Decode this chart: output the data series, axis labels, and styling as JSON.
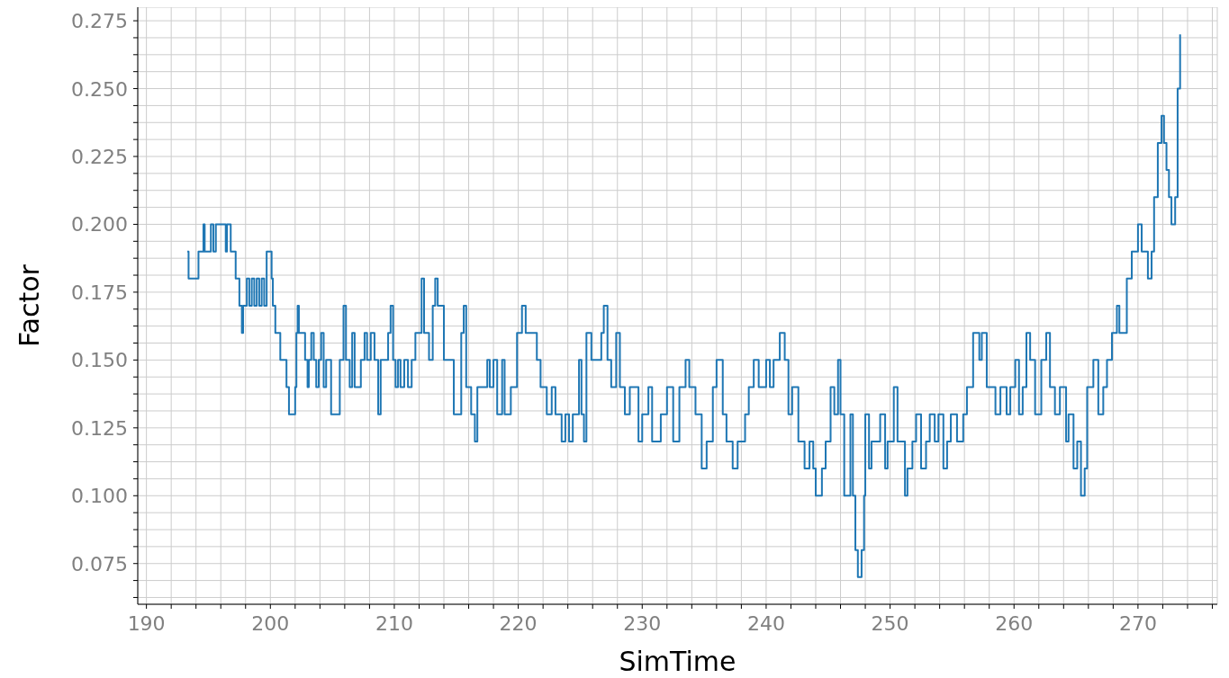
{
  "chart_data": {
    "type": "step",
    "xlabel": "SimTime",
    "ylabel": "Factor",
    "xlim": [
      189.3,
      276.4
    ],
    "ylim": [
      0.06,
      0.28
    ],
    "xticks": [
      190,
      {
        "value": 192,
        "label": null
      },
      {
        "value": 194,
        "label": null
      },
      {
        "value": 196,
        "label": null
      },
      {
        "value": 198,
        "label": null
      },
      200,
      {
        "value": 202,
        "label": null
      },
      {
        "value": 204,
        "label": null
      },
      {
        "value": 206,
        "label": null
      },
      {
        "value": 208,
        "label": null
      },
      210,
      {
        "value": 212,
        "label": null
      },
      {
        "value": 214,
        "label": null
      },
      {
        "value": 216,
        "label": null
      },
      {
        "value": 218,
        "label": null
      },
      220,
      {
        "value": 222,
        "label": null
      },
      {
        "value": 224,
        "label": null
      },
      {
        "value": 226,
        "label": null
      },
      {
        "value": 228,
        "label": null
      },
      230,
      {
        "value": 232,
        "label": null
      },
      {
        "value": 234,
        "label": null
      },
      {
        "value": 236,
        "label": null
      },
      {
        "value": 238,
        "label": null
      },
      240,
      {
        "value": 242,
        "label": null
      },
      {
        "value": 244,
        "label": null
      },
      {
        "value": 246,
        "label": null
      },
      {
        "value": 248,
        "label": null
      },
      250,
      {
        "value": 252,
        "label": null
      },
      {
        "value": 254,
        "label": null
      },
      {
        "value": 256,
        "label": null
      },
      {
        "value": 258,
        "label": null
      },
      260,
      {
        "value": 262,
        "label": null
      },
      {
        "value": 264,
        "label": null
      },
      {
        "value": 266,
        "label": null
      },
      {
        "value": 268,
        "label": null
      },
      270,
      {
        "value": 272,
        "label": null
      },
      {
        "value": 274,
        "label": null
      },
      {
        "value": 276,
        "label": null
      }
    ],
    "yticks": [
      {
        "value": 0.0625,
        "label": null
      },
      {
        "value": 0.06875,
        "label": null
      },
      {
        "value": 0.075,
        "label": "0.075"
      },
      {
        "value": 0.08125,
        "label": null
      },
      {
        "value": 0.0875,
        "label": null
      },
      {
        "value": 0.09375,
        "label": null
      },
      {
        "value": 0.1,
        "label": "0.100"
      },
      {
        "value": 0.10625,
        "label": null
      },
      {
        "value": 0.1125,
        "label": null
      },
      {
        "value": 0.11875,
        "label": null
      },
      {
        "value": 0.125,
        "label": "0.125"
      },
      {
        "value": 0.13125,
        "label": null
      },
      {
        "value": 0.1375,
        "label": null
      },
      {
        "value": 0.14375,
        "label": null
      },
      {
        "value": 0.15,
        "label": "0.150"
      },
      {
        "value": 0.15625,
        "label": null
      },
      {
        "value": 0.1625,
        "label": null
      },
      {
        "value": 0.16875,
        "label": null
      },
      {
        "value": 0.175,
        "label": "0.175"
      },
      {
        "value": 0.18125,
        "label": null
      },
      {
        "value": 0.1875,
        "label": null
      },
      {
        "value": 0.19375,
        "label": null
      },
      {
        "value": 0.2,
        "label": "0.200"
      },
      {
        "value": 0.20625,
        "label": null
      },
      {
        "value": 0.2125,
        "label": null
      },
      {
        "value": 0.21875,
        "label": null
      },
      {
        "value": 0.225,
        "label": "0.225"
      },
      {
        "value": 0.23125,
        "label": null
      },
      {
        "value": 0.2375,
        "label": null
      },
      {
        "value": 0.24375,
        "label": null
      },
      {
        "value": 0.25,
        "label": "0.250"
      },
      {
        "value": 0.25625,
        "label": null
      },
      {
        "value": 0.2625,
        "label": null
      },
      {
        "value": 0.26875,
        "label": null
      },
      {
        "value": 0.275,
        "label": "0.275"
      }
    ],
    "grid": true,
    "series": [
      {
        "color": "#1f77b4",
        "x": [
          193.3,
          193.4,
          194.2,
          194.6,
          194.7,
          195.2,
          195.4,
          195.6,
          196.4,
          196.5,
          196.8,
          197.2,
          197.5,
          197.7,
          197.8,
          198.1,
          198.3,
          198.5,
          198.7,
          198.9,
          199.1,
          199.3,
          199.5,
          199.7,
          200.1,
          200.2,
          200.4,
          200.8,
          201.3,
          201.5,
          202.0,
          202.1,
          202.2,
          202.3,
          202.8,
          203.0,
          203.1,
          203.3,
          203.5,
          203.7,
          203.9,
          204.1,
          204.3,
          204.5,
          204.9,
          205.6,
          205.9,
          206.1,
          206.4,
          206.6,
          206.8,
          207.3,
          207.6,
          207.8,
          208.1,
          208.4,
          208.7,
          208.9,
          209.5,
          209.7,
          209.9,
          210.1,
          210.3,
          210.5,
          210.8,
          211.1,
          211.4,
          211.7,
          212.2,
          212.4,
          212.8,
          213.1,
          213.3,
          213.5,
          214.0,
          214.8,
          215.4,
          215.6,
          215.8,
          216.2,
          216.5,
          216.7,
          217.5,
          217.7,
          218.0,
          218.3,
          218.7,
          218.9,
          219.4,
          219.9,
          220.3,
          220.6,
          221.5,
          221.8,
          222.3,
          222.7,
          223.0,
          223.5,
          223.8,
          224.1,
          224.4,
          224.9,
          225.1,
          225.3,
          225.5,
          225.9,
          226.7,
          226.9,
          227.2,
          227.5,
          227.9,
          228.2,
          228.6,
          229.0,
          229.7,
          230.0,
          230.5,
          230.8,
          231.5,
          232.0,
          232.5,
          233.0,
          233.5,
          233.8,
          234.3,
          234.8,
          235.2,
          235.7,
          236.0,
          236.5,
          236.8,
          237.3,
          237.7,
          238.3,
          238.6,
          239.0,
          239.4,
          240.0,
          240.3,
          240.6,
          241.1,
          241.5,
          241.8,
          242.1,
          242.6,
          243.1,
          243.5,
          243.8,
          244.0,
          244.5,
          244.8,
          245.2,
          245.5,
          245.8,
          246.0,
          246.3,
          246.8,
          247.0,
          247.2,
          247.4,
          247.7,
          247.9,
          248.0,
          248.3,
          248.5,
          249.2,
          249.6,
          249.8,
          250.3,
          250.6,
          251.2,
          251.4,
          251.8,
          252.1,
          252.5,
          252.9,
          253.2,
          253.6,
          253.9,
          254.3,
          254.6,
          254.9,
          255.4,
          255.9,
          256.2,
          256.7,
          257.2,
          257.4,
          257.8,
          258.5,
          258.9,
          259.4,
          259.7,
          260.1,
          260.4,
          260.7,
          261.0,
          261.3,
          261.7,
          262.2,
          262.6,
          262.9,
          263.3,
          263.7,
          264.2,
          264.4,
          264.8,
          265.1,
          265.4,
          265.7,
          265.9,
          266.4,
          266.8,
          267.2,
          267.5,
          267.9,
          268.3,
          268.5,
          269.1,
          269.5,
          270.0,
          270.3,
          270.8,
          271.1,
          271.3,
          271.6,
          271.9,
          272.1,
          272.3,
          272.5,
          272.7,
          273.0,
          273.2,
          273.4
        ],
        "values": [
          0.19,
          0.18,
          0.19,
          0.2,
          0.19,
          0.2,
          0.19,
          0.2,
          0.19,
          0.2,
          0.19,
          0.18,
          0.17,
          0.16,
          0.17,
          0.18,
          0.17,
          0.18,
          0.17,
          0.18,
          0.17,
          0.18,
          0.17,
          0.19,
          0.18,
          0.17,
          0.16,
          0.15,
          0.14,
          0.13,
          0.14,
          0.16,
          0.17,
          0.16,
          0.15,
          0.14,
          0.15,
          0.16,
          0.15,
          0.14,
          0.15,
          0.16,
          0.14,
          0.15,
          0.13,
          0.15,
          0.17,
          0.15,
          0.14,
          0.16,
          0.14,
          0.15,
          0.16,
          0.15,
          0.16,
          0.15,
          0.13,
          0.15,
          0.16,
          0.17,
          0.15,
          0.14,
          0.15,
          0.14,
          0.15,
          0.14,
          0.15,
          0.16,
          0.18,
          0.16,
          0.15,
          0.17,
          0.18,
          0.17,
          0.15,
          0.13,
          0.16,
          0.17,
          0.14,
          0.13,
          0.12,
          0.14,
          0.15,
          0.14,
          0.15,
          0.13,
          0.15,
          0.13,
          0.14,
          0.16,
          0.17,
          0.16,
          0.15,
          0.14,
          0.13,
          0.14,
          0.13,
          0.12,
          0.13,
          0.12,
          0.13,
          0.15,
          0.13,
          0.12,
          0.16,
          0.15,
          0.16,
          0.17,
          0.15,
          0.14,
          0.16,
          0.14,
          0.13,
          0.14,
          0.12,
          0.13,
          0.14,
          0.12,
          0.13,
          0.14,
          0.12,
          0.14,
          0.15,
          0.14,
          0.13,
          0.11,
          0.12,
          0.14,
          0.15,
          0.13,
          0.12,
          0.11,
          0.12,
          0.13,
          0.14,
          0.15,
          0.14,
          0.15,
          0.14,
          0.15,
          0.16,
          0.15,
          0.13,
          0.14,
          0.12,
          0.11,
          0.12,
          0.11,
          0.1,
          0.11,
          0.12,
          0.14,
          0.13,
          0.15,
          0.13,
          0.1,
          0.13,
          0.1,
          0.08,
          0.07,
          0.08,
          0.1,
          0.13,
          0.11,
          0.12,
          0.13,
          0.11,
          0.12,
          0.14,
          0.12,
          0.1,
          0.11,
          0.12,
          0.13,
          0.11,
          0.12,
          0.13,
          0.12,
          0.13,
          0.11,
          0.12,
          0.13,
          0.12,
          0.13,
          0.14,
          0.16,
          0.15,
          0.16,
          0.14,
          0.13,
          0.14,
          0.13,
          0.14,
          0.15,
          0.13,
          0.14,
          0.16,
          0.15,
          0.13,
          0.15,
          0.16,
          0.14,
          0.13,
          0.14,
          0.12,
          0.13,
          0.11,
          0.12,
          0.1,
          0.11,
          0.14,
          0.15,
          0.13,
          0.14,
          0.15,
          0.16,
          0.17,
          0.16,
          0.18,
          0.19,
          0.2,
          0.19,
          0.18,
          0.19,
          0.21,
          0.23,
          0.24,
          0.23,
          0.22,
          0.21,
          0.2,
          0.21,
          0.25,
          0.27
        ]
      }
    ]
  }
}
